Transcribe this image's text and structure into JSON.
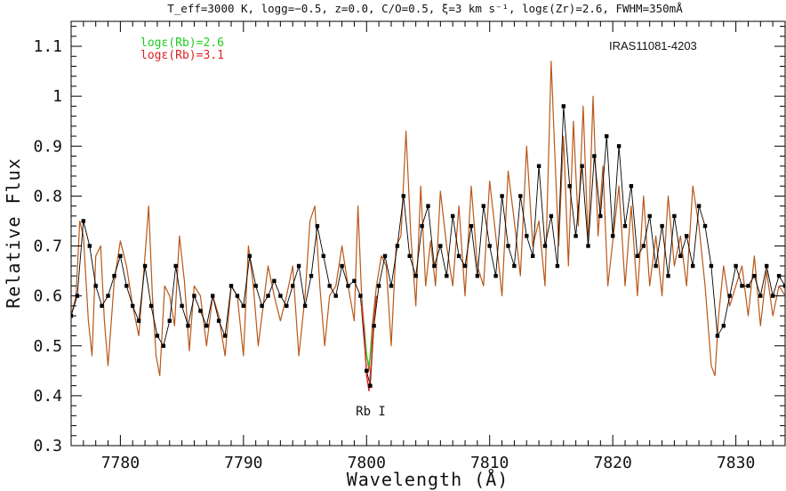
{
  "header": {
    "title": "T_eff=3000 K, logg=−0.5, z=0.0, C/O=0.5, ξ=3 km s⁻¹, logε(Zr)=2.6, FWHM=350mÅ"
  },
  "chart_data": {
    "type": "line",
    "title": "Teff=3000 K, logg=−0.5, z=0.0, C/O=0.5, ξ=3 km s⁻¹, logε(Zr)=2.6, FWHM=350mÅ",
    "xlabel": "Wavelength (Å)",
    "ylabel": "Relative Flux",
    "xlim": [
      7776,
      7834
    ],
    "ylim": [
      0.3,
      1.15
    ],
    "xticks": [
      7780,
      7790,
      7800,
      7810,
      7820,
      7830
    ],
    "xtick_labels": [
      "7780",
      "7790",
      "7800",
      "7810",
      "7820",
      "7830"
    ],
    "yticks": [
      0.3,
      0.4,
      0.5,
      0.6,
      0.7,
      0.8,
      0.9,
      1.0,
      1.1
    ],
    "ytick_labels": [
      "0.3",
      "0.4",
      "0.5",
      "0.6",
      "0.7",
      "0.8",
      "0.9",
      "1",
      "1.1"
    ],
    "grid": false,
    "legend": {
      "placement": "top-left",
      "entries": [
        {
          "name": "logε(Rb)=2.6",
          "color": "#22cc22"
        },
        {
          "name": "logε(Rb)=3.1",
          "color": "#dd2222"
        }
      ]
    },
    "annotations": [
      {
        "text": "IRAS11081-4203",
        "position": "top-right"
      },
      {
        "text": "Rb I",
        "x": 7800.3,
        "y": 0.375
      }
    ],
    "colors": {
      "synthetic": "#b8581a",
      "observed": "#000000",
      "rb_low": "#22cc22",
      "rb_high": "#dd2222"
    },
    "series": [
      {
        "role": "synthetic",
        "x": [
          7776.0,
          7776.4,
          7776.7,
          7777.0,
          7777.4,
          7777.7,
          7778.0,
          7778.4,
          7778.7,
          7779.0,
          7779.5,
          7780.0,
          7780.5,
          7781.0,
          7781.5,
          7782.0,
          7782.3,
          7782.6,
          7782.9,
          7783.2,
          7783.6,
          7784.0,
          7784.4,
          7784.8,
          7785.2,
          7785.6,
          7786.0,
          7786.5,
          7787.0,
          7787.5,
          7788.0,
          7788.5,
          7789.0,
          7789.5,
          7790.0,
          7790.4,
          7790.8,
          7791.2,
          7791.6,
          7792.0,
          7792.5,
          7793.0,
          7793.5,
          7794.0,
          7794.5,
          7795.0,
          7795.4,
          7795.8,
          7796.2,
          7796.6,
          7797.0,
          7797.5,
          7798.0,
          7798.5,
          7799.0,
          7799.3,
          7799.6,
          7799.9,
          7800.2,
          7800.5,
          7800.8,
          7801.2,
          7801.6,
          7802.0,
          7802.4,
          7802.8,
          7803.2,
          7803.6,
          7804.0,
          7804.4,
          7804.8,
          7805.2,
          7805.6,
          7806.0,
          7806.5,
          7807.0,
          7807.5,
          7808.0,
          7808.5,
          7809.0,
          7809.5,
          7810.0,
          7810.5,
          7811.0,
          7811.5,
          7812.0,
          7812.5,
          7813.0,
          7813.5,
          7814.0,
          7814.5,
          7815.0,
          7815.3,
          7815.6,
          7816.0,
          7816.4,
          7816.8,
          7817.2,
          7817.6,
          7818.0,
          7818.4,
          7818.8,
          7819.2,
          7819.6,
          7820.0,
          7820.5,
          7821.0,
          7821.5,
          7822.0,
          7822.5,
          7823.0,
          7823.5,
          7824.0,
          7824.5,
          7825.0,
          7825.5,
          7826.0,
          7826.5,
          7827.0,
          7827.5,
          7828.0,
          7828.3,
          7828.6,
          7829.0,
          7829.5,
          7830.0,
          7830.5,
          7831.0,
          7831.5,
          7832.0,
          7832.5,
          7833.0,
          7833.5,
          7834.0
        ],
        "y": [
          0.56,
          0.6,
          0.75,
          0.72,
          0.55,
          0.48,
          0.68,
          0.7,
          0.55,
          0.46,
          0.63,
          0.71,
          0.66,
          0.58,
          0.52,
          0.68,
          0.78,
          0.6,
          0.48,
          0.44,
          0.62,
          0.6,
          0.54,
          0.72,
          0.63,
          0.49,
          0.62,
          0.6,
          0.5,
          0.6,
          0.56,
          0.48,
          0.62,
          0.6,
          0.48,
          0.7,
          0.62,
          0.5,
          0.58,
          0.66,
          0.6,
          0.55,
          0.6,
          0.66,
          0.48,
          0.6,
          0.75,
          0.78,
          0.62,
          0.5,
          0.6,
          0.62,
          0.7,
          0.62,
          0.55,
          0.78,
          0.6,
          0.5,
          0.45,
          0.55,
          0.62,
          0.68,
          0.66,
          0.5,
          0.7,
          0.72,
          0.93,
          0.72,
          0.58,
          0.82,
          0.62,
          0.71,
          0.62,
          0.81,
          0.7,
          0.62,
          0.78,
          0.6,
          0.82,
          0.66,
          0.62,
          0.83,
          0.72,
          0.6,
          0.85,
          0.75,
          0.64,
          0.9,
          0.7,
          0.75,
          0.62,
          1.07,
          0.88,
          0.7,
          0.92,
          0.66,
          0.95,
          0.74,
          0.98,
          0.7,
          1.0,
          0.72,
          0.86,
          0.62,
          0.71,
          0.82,
          0.62,
          0.78,
          0.6,
          0.8,
          0.62,
          0.72,
          0.6,
          0.8,
          0.66,
          0.72,
          0.62,
          0.82,
          0.74,
          0.62,
          0.46,
          0.44,
          0.56,
          0.66,
          0.58,
          0.62,
          0.66,
          0.56,
          0.68,
          0.54,
          0.65,
          0.56,
          0.62,
          0.6
        ]
      },
      {
        "role": "observed",
        "x": [
          7776.0,
          7776.5,
          7777.0,
          7777.5,
          7778.0,
          7778.5,
          7779.0,
          7779.5,
          7780.0,
          7780.5,
          7781.0,
          7781.5,
          7782.0,
          7782.5,
          7783.0,
          7783.5,
          7784.0,
          7784.5,
          7785.0,
          7785.5,
          7786.0,
          7786.5,
          7787.0,
          7787.5,
          7788.0,
          7788.5,
          7789.0,
          7789.5,
          7790.0,
          7790.5,
          7791.0,
          7791.5,
          7792.0,
          7792.5,
          7793.0,
          7793.5,
          7794.0,
          7794.5,
          7795.0,
          7795.5,
          7796.0,
          7796.5,
          7797.0,
          7797.5,
          7798.0,
          7798.5,
          7799.0,
          7799.5,
          7800.0,
          7800.3,
          7800.6,
          7801.0,
          7801.5,
          7802.0,
          7802.5,
          7803.0,
          7803.5,
          7804.0,
          7804.5,
          7805.0,
          7805.5,
          7806.0,
          7806.5,
          7807.0,
          7807.5,
          7808.0,
          7808.5,
          7809.0,
          7809.5,
          7810.0,
          7810.5,
          7811.0,
          7811.5,
          7812.0,
          7812.5,
          7813.0,
          7813.5,
          7814.0,
          7814.5,
          7815.0,
          7815.5,
          7816.0,
          7816.5,
          7817.0,
          7817.5,
          7818.0,
          7818.5,
          7819.0,
          7819.5,
          7820.0,
          7820.5,
          7821.0,
          7821.5,
          7822.0,
          7822.5,
          7823.0,
          7823.5,
          7824.0,
          7824.5,
          7825.0,
          7825.5,
          7826.0,
          7826.5,
          7827.0,
          7827.5,
          7828.0,
          7828.5,
          7829.0,
          7829.5,
          7830.0,
          7830.5,
          7831.0,
          7831.5,
          7832.0,
          7832.5,
          7833.0,
          7833.5,
          7834.0
        ],
        "y": [
          0.56,
          0.6,
          0.75,
          0.7,
          0.62,
          0.58,
          0.6,
          0.64,
          0.68,
          0.62,
          0.58,
          0.55,
          0.66,
          0.58,
          0.52,
          0.5,
          0.55,
          0.66,
          0.58,
          0.54,
          0.6,
          0.57,
          0.54,
          0.6,
          0.55,
          0.52,
          0.62,
          0.6,
          0.58,
          0.68,
          0.62,
          0.58,
          0.6,
          0.63,
          0.6,
          0.58,
          0.62,
          0.66,
          0.58,
          0.64,
          0.74,
          0.68,
          0.62,
          0.6,
          0.66,
          0.62,
          0.63,
          0.6,
          0.45,
          0.42,
          0.54,
          0.62,
          0.68,
          0.62,
          0.7,
          0.8,
          0.68,
          0.64,
          0.74,
          0.78,
          0.66,
          0.7,
          0.64,
          0.76,
          0.68,
          0.66,
          0.74,
          0.64,
          0.78,
          0.7,
          0.64,
          0.8,
          0.7,
          0.66,
          0.8,
          0.72,
          0.68,
          0.86,
          0.7,
          0.76,
          0.66,
          0.98,
          0.82,
          0.72,
          0.86,
          0.7,
          0.88,
          0.76,
          0.92,
          0.72,
          0.9,
          0.74,
          0.82,
          0.68,
          0.7,
          0.76,
          0.66,
          0.74,
          0.64,
          0.76,
          0.68,
          0.72,
          0.66,
          0.78,
          0.74,
          0.66,
          0.52,
          0.54,
          0.6,
          0.66,
          0.62,
          0.62,
          0.64,
          0.6,
          0.66,
          0.6,
          0.64,
          0.62
        ]
      },
      {
        "role": "rb_low",
        "name": "logε(Rb)=2.6",
        "x": [
          7799.6,
          7799.8,
          7800.0,
          7800.2,
          7800.4,
          7800.6,
          7800.8
        ],
        "y": [
          0.58,
          0.54,
          0.48,
          0.46,
          0.5,
          0.56,
          0.6
        ]
      },
      {
        "role": "rb_high",
        "name": "logε(Rb)=3.1",
        "x": [
          7799.6,
          7799.8,
          7800.0,
          7800.2,
          7800.4,
          7800.6,
          7800.8
        ],
        "y": [
          0.58,
          0.53,
          0.44,
          0.41,
          0.47,
          0.55,
          0.6
        ]
      }
    ]
  }
}
